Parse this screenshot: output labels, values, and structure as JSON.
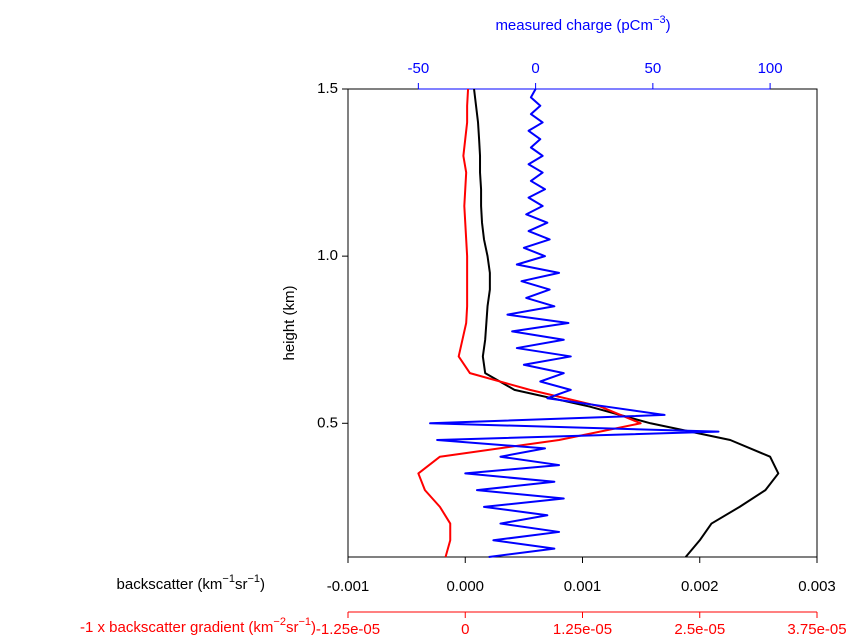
{
  "chart_data": {
    "type": "line",
    "orientation": "vertical-profile",
    "y_label": "height (km)",
    "ylim": [
      0.1,
      1.5
    ],
    "yticks": [
      0.5,
      {
        "value": 1.0,
        "label": "1.0"
      },
      1.5
    ],
    "axes": [
      {
        "label": [
          "backscatter (km",
          "−1",
          "sr",
          "−1",
          ")"
        ],
        "color": "#000000",
        "side": "bottom",
        "xlim": [
          -0.001,
          0.003
        ],
        "xticks": [
          -0.001,
          {
            "value": 0,
            "label": "0.000"
          },
          0.001,
          0.002,
          0.003
        ]
      },
      {
        "label": [
          "-1 x backscatter gradient (km",
          "−2",
          "sr",
          "−1",
          ")"
        ],
        "color": "#ff0000",
        "side": "bottom2",
        "xlim": [
          -1.25e-05,
          3.75e-05
        ],
        "xticks": [
          {
            "value": -1.25e-05,
            "label": "-1.25e-05"
          },
          0,
          {
            "value": 1.25e-05,
            "label": "1.25e-05"
          },
          {
            "value": 2.5e-05,
            "label": "2.5e-05"
          },
          {
            "value": 3.75e-05,
            "label": "3.75e-05"
          }
        ]
      },
      {
        "label": [
          "measured charge (pCm",
          "−3",
          ")"
        ],
        "color": "#0000ff",
        "side": "top",
        "xlim": [
          -80,
          120
        ],
        "xticks": [
          -50,
          0,
          50,
          100
        ]
      }
    ],
    "series": [
      {
        "axis": 0,
        "color": "#000000",
        "heights": [
          0.1,
          0.15,
          0.2,
          0.25,
          0.3,
          0.35,
          0.4,
          0.45,
          0.5,
          0.55,
          0.6,
          0.65,
          0.7,
          0.75,
          0.8,
          0.85,
          0.9,
          0.95,
          1.0,
          1.05,
          1.1,
          1.15,
          1.2,
          1.25,
          1.3,
          1.35,
          1.4,
          1.45,
          1.5
        ],
        "values": [
          0.00188,
          0.002,
          0.0021,
          0.00234,
          0.00256,
          0.00267,
          0.0026,
          0.00226,
          0.00158,
          0.00106,
          0.00042,
          0.00017,
          0.00015,
          0.00017,
          0.00018,
          0.00019,
          0.00021,
          0.00021,
          0.00019,
          0.00016,
          0.000143,
          0.000135,
          0.000135,
          0.000126,
          0.000126,
          0.000118,
          0.000109,
          9.2e-05,
          7.5e-05
        ]
      },
      {
        "axis": 1,
        "color": "#ff0000",
        "heights": [
          0.1,
          0.15,
          0.2,
          0.25,
          0.3,
          0.35,
          0.4,
          0.45,
          0.5,
          0.55,
          0.6,
          0.65,
          0.7,
          0.75,
          0.8,
          0.85,
          0.9,
          0.95,
          1.0,
          1.05,
          1.1,
          1.15,
          1.2,
          1.25,
          1.3,
          1.35,
          1.4,
          1.45,
          1.5
        ],
        "values": [
          -2.1e-06,
          -1.6e-06,
          -1.6e-06,
          -2.7e-06,
          -4.3e-06,
          -5e-06,
          -2.7e-06,
          1e-05,
          1.87e-05,
          1.44e-05,
          6.9e-06,
          5e-07,
          -7e-07,
          -3e-07,
          1e-07,
          2e-07,
          2e-07,
          2e-07,
          2e-07,
          1e-07,
          0,
          -1e-07,
          0,
          1e-07,
          -2e-07,
          0,
          2e-07,
          2e-07,
          3e-07
        ]
      },
      {
        "axis": 2,
        "color": "#0000ff",
        "heights": [
          0.1,
          0.125,
          0.15,
          0.175,
          0.2,
          0.225,
          0.25,
          0.275,
          0.3,
          0.325,
          0.35,
          0.375,
          0.4,
          0.425,
          0.45,
          0.475,
          0.5,
          0.525,
          0.55,
          0.575,
          0.6,
          0.625,
          0.65,
          0.675,
          0.7,
          0.725,
          0.75,
          0.775,
          0.8,
          0.825,
          0.85,
          0.875,
          0.9,
          0.925,
          0.95,
          0.975,
          1.0,
          1.025,
          1.05,
          1.075,
          1.1,
          1.125,
          1.15,
          1.175,
          1.2,
          1.225,
          1.25,
          1.275,
          1.3,
          1.325,
          1.35,
          1.375,
          1.4,
          1.425,
          1.45,
          1.475,
          1.5
        ],
        "values": [
          -20,
          8,
          -18,
          10,
          -15,
          5,
          -22,
          12,
          -25,
          8,
          -30,
          10,
          -15,
          4,
          -42,
          78,
          -45,
          55,
          30,
          5,
          15,
          2,
          12,
          -5,
          15,
          -8,
          12,
          -10,
          14,
          -12,
          8,
          -4,
          6,
          -6,
          10,
          -8,
          4,
          -5,
          6,
          -3,
          5,
          -4,
          3,
          -3,
          4,
          -2,
          3,
          -3,
          3,
          -2,
          2,
          -3,
          3,
          -2,
          2,
          -2,
          0
        ]
      }
    ]
  }
}
